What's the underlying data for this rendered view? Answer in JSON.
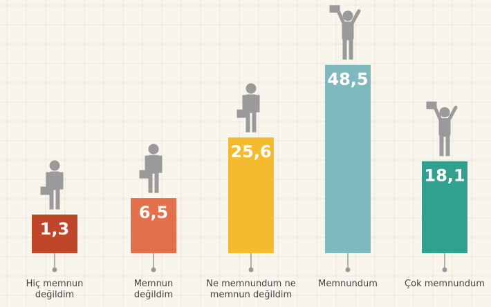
{
  "chart_data": {
    "type": "bar",
    "categories": [
      "Hiç memnun değildim",
      "Memnun değildim",
      "Ne memnundum ne memnun değildim",
      "Memnundum",
      "Çok memnundum"
    ],
    "values": [
      1.3,
      6.5,
      25.6,
      48.5,
      18.1
    ],
    "value_labels": [
      "1,3",
      "6,5",
      "25,6",
      "48,5",
      "18,1"
    ],
    "colors": [
      "#c0462a",
      "#e2704b",
      "#f4bb2e",
      "#7fb8bd",
      "#31a08f"
    ]
  }
}
